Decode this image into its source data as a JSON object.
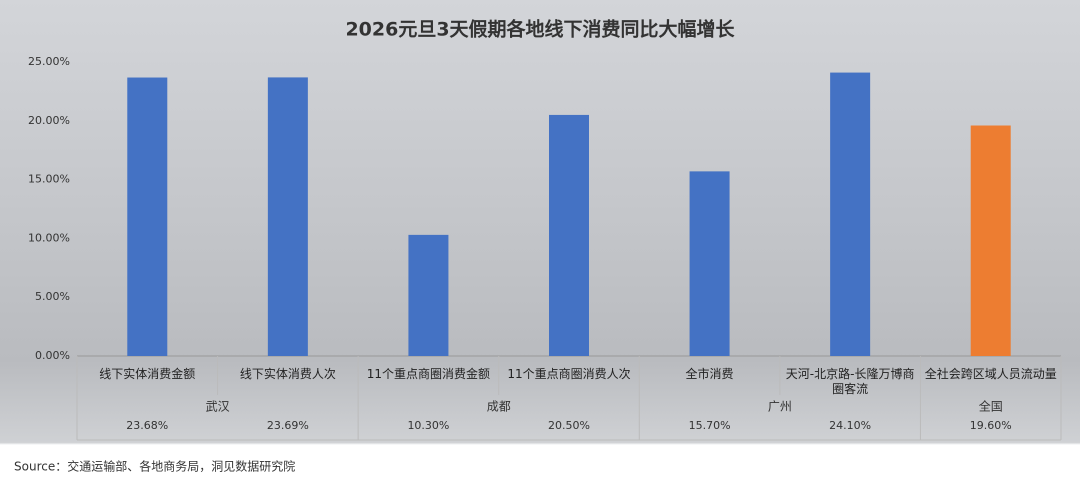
{
  "chart_data": {
    "type": "bar",
    "title": "2026元旦3天假期各地线下消费同比大幅增长",
    "categories": [
      "线下实体消费金额",
      "线下实体消费人次",
      "11个重点商圈消费金额",
      "11个重点商圈消费人次",
      "全市消费",
      "天河-北京路-长隆万博商圈客流",
      "全社会跨区域人员流动量"
    ],
    "groups": [
      "武汉",
      null,
      "成都",
      null,
      "广州",
      null,
      "全国"
    ],
    "values": [
      23.68,
      23.69,
      10.3,
      20.5,
      15.7,
      24.1,
      19.6
    ],
    "value_labels": [
      "23.68%",
      "23.69%",
      "10.30%",
      "20.50%",
      "15.70%",
      "24.10%",
      "19.60%"
    ],
    "colors": [
      "#4472c4",
      "#4472c4",
      "#4472c4",
      "#4472c4",
      "#4472c4",
      "#4472c4",
      "#ed7d31"
    ],
    "ylim": [
      0,
      25
    ],
    "yticks": [
      {
        "value": 0,
        "label": "0.00%"
      },
      {
        "value": 5,
        "label": "5.00%"
      },
      {
        "value": 10,
        "label": "10.00%"
      },
      {
        "value": 15,
        "label": "15.00%"
      },
      {
        "value": 20,
        "label": "20.00%"
      },
      {
        "value": 25,
        "label": "25.00%"
      }
    ],
    "grid": false,
    "source": "Source：交通运输部、各地商务局，洞见数据研究院"
  }
}
